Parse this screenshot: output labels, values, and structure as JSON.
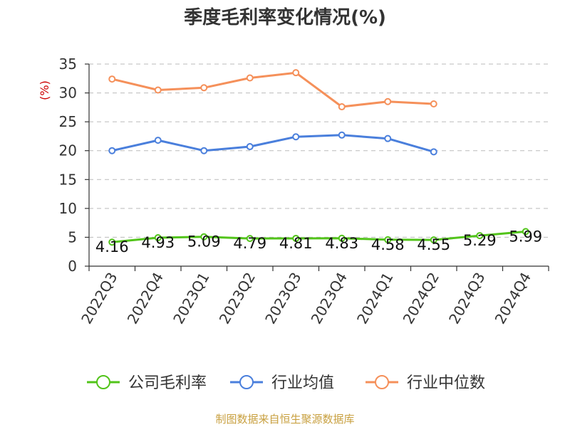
{
  "chart_data": {
    "type": "line",
    "title": "季度毛利率变化情况(%)",
    "ylabel": "(%)",
    "ylim": [
      0,
      35
    ],
    "yticks": [
      0,
      5,
      10,
      15,
      20,
      25,
      30,
      35
    ],
    "grid": true,
    "legend_position": "bottom",
    "categories": [
      "2022Q3",
      "2022Q4",
      "2023Q1",
      "2023Q2",
      "2023Q3",
      "2023Q4",
      "2024Q1",
      "2024Q2",
      "2024Q3",
      "2024Q4"
    ],
    "series": [
      {
        "name": "公司毛利率",
        "color": "#52c41a",
        "values": [
          4.16,
          4.93,
          5.09,
          4.79,
          4.81,
          4.83,
          4.58,
          4.55,
          5.29,
          5.99
        ],
        "labels": [
          "4.16",
          "4.93",
          "5.09",
          "4.79",
          "4.81",
          "4.83",
          "4.58",
          "4.55",
          "5.29",
          "5.99"
        ]
      },
      {
        "name": "行业均值",
        "color": "#4a7fdc",
        "values": [
          20.0,
          21.8,
          20.0,
          20.7,
          22.4,
          22.7,
          22.1,
          19.8,
          null,
          null
        ]
      },
      {
        "name": "行业中位数",
        "color": "#f5905a",
        "values": [
          32.4,
          30.5,
          30.9,
          32.6,
          33.5,
          27.6,
          28.5,
          28.1,
          null,
          null
        ]
      }
    ]
  },
  "footer": {
    "source": "制图数据来自恒生聚源数据库",
    "source_color": "#c8a040"
  },
  "colors": {
    "unit": "#cc0000",
    "grid": "#bbbbbb",
    "axis": "#333333"
  }
}
